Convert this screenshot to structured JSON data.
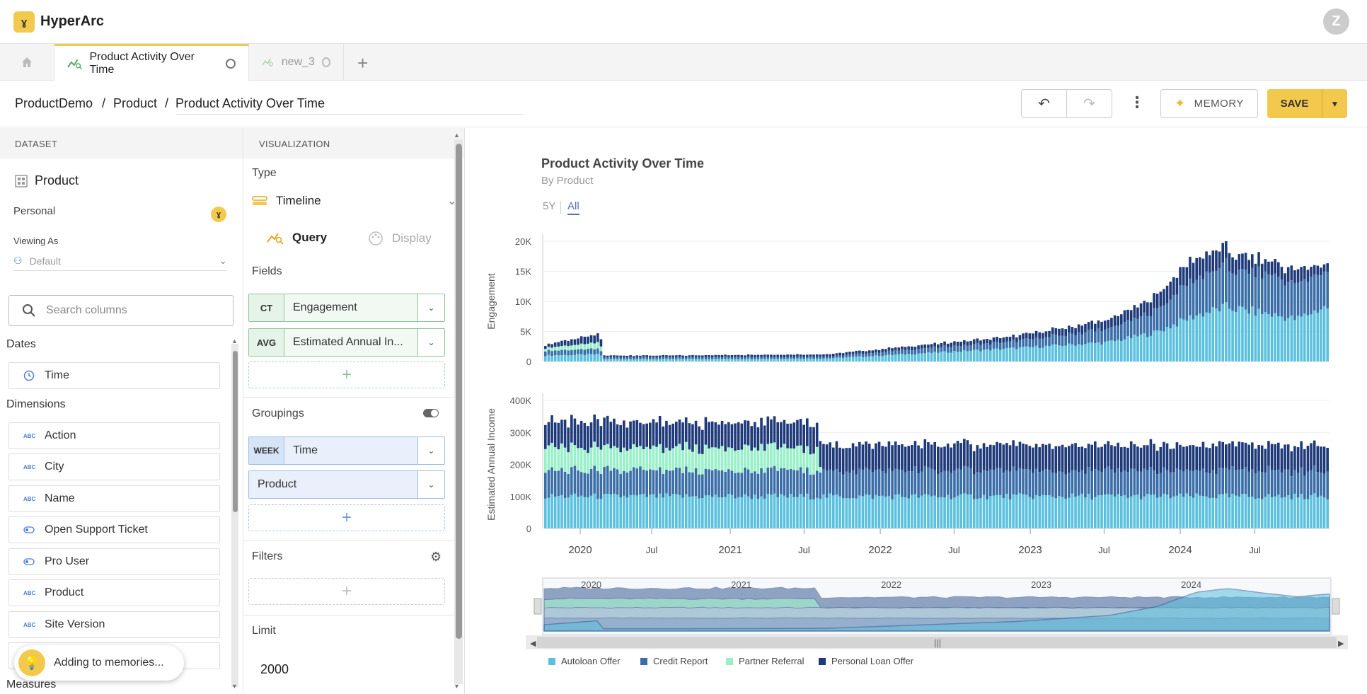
{
  "app": {
    "name": "HyperArc",
    "logo_glyph": "ɣ",
    "avatar_initial": "Z"
  },
  "tabs": [
    {
      "label": "Product Activity Over Time",
      "active": true
    },
    {
      "label": "new_3",
      "active": false
    }
  ],
  "breadcrumb": {
    "root": "ProductDemo",
    "sep": "/",
    "parent": "Product",
    "title": "Product Activity Over Time"
  },
  "toolbar": {
    "memory_label": "MEMORY",
    "save_label": "SAVE"
  },
  "dataset": {
    "header": "DATASET",
    "name": "Product",
    "owner": "Personal",
    "viewing_as_label": "Viewing As",
    "viewing_as_value": "Default",
    "search_placeholder": "Search columns",
    "dates_label": "Dates",
    "dates": [
      "Time"
    ],
    "dimensions_label": "Dimensions",
    "dimensions": [
      {
        "label": "Action",
        "icon": "abc-icon"
      },
      {
        "label": "City",
        "icon": "abc-icon"
      },
      {
        "label": "Name",
        "icon": "abc-icon"
      },
      {
        "label": "Open Support Ticket",
        "icon": "toggle-icon"
      },
      {
        "label": "Pro User",
        "icon": "toggle-icon"
      },
      {
        "label": "Product",
        "icon": "abc-icon"
      },
      {
        "label": "Site Version",
        "icon": "abc-icon"
      }
    ],
    "measures_label": "Measures",
    "toast": "Adding to memories..."
  },
  "visualization": {
    "header": "VISUALIZATION",
    "type_label": "Type",
    "type_value": "Timeline",
    "query_tab": "Query",
    "display_tab": "Display",
    "fields_label": "Fields",
    "fields": [
      {
        "agg": "CT",
        "name": "Engagement"
      },
      {
        "agg": "AVG",
        "name": "Estimated Annual In..."
      }
    ],
    "groupings_label": "Groupings",
    "groupings": [
      {
        "agg": "WEEK",
        "name": "Time"
      },
      {
        "agg": "",
        "name": "Product"
      }
    ],
    "filters_label": "Filters",
    "limit_label": "Limit",
    "limit_value": "2000"
  },
  "chart": {
    "title": "Product Activity Over Time",
    "subtitle": "By Product",
    "range_options": [
      "5Y",
      "All"
    ],
    "selected_range": "All"
  },
  "chart_data": {
    "type": "bar",
    "stacked": true,
    "x_ticks": [
      "2020",
      "Jul",
      "2021",
      "Jul",
      "2022",
      "Jul",
      "2023",
      "Jul",
      "2024",
      "Jul"
    ],
    "navigator_ticks": [
      "2020",
      "2021",
      "2022",
      "2023",
      "2024"
    ],
    "series": [
      {
        "name": "Autoloan Offer",
        "color": "#5bc0de"
      },
      {
        "name": "Credit Report",
        "color": "#3a6ea8"
      },
      {
        "name": "Partner Referral",
        "color": "#98f0c8"
      },
      {
        "name": "Personal Loan Offer",
        "color": "#1f3a7a"
      }
    ],
    "panels": [
      {
        "ylabel": "Engagement",
        "yticks": [
          "0",
          "5K",
          "10K",
          "15K",
          "20K"
        ],
        "ylim": [
          0,
          20000
        ],
        "anchors": [
          [
            0,
            [
              1000,
              800,
              500,
              500
            ]
          ],
          [
            0.07,
            [
              1200,
              900,
              1000,
              1500
            ]
          ],
          [
            0.075,
            [
              400,
              300,
              0,
              300
            ]
          ],
          [
            0.15,
            [
              400,
              300,
              0,
              300
            ]
          ],
          [
            0.36,
            [
              500,
              300,
              0,
              400
            ]
          ],
          [
            0.6,
            [
              2200,
              1200,
              0,
              800
            ]
          ],
          [
            0.72,
            [
              3200,
              2200,
              0,
              1500
            ]
          ],
          [
            0.78,
            [
              4800,
              3600,
              0,
              2400
            ]
          ],
          [
            0.83,
            [
              7600,
              6000,
              0,
              3500
            ]
          ],
          [
            0.87,
            [
              9000,
              6800,
              0,
              3000
            ]
          ],
          [
            0.92,
            [
              8000,
              6400,
              0,
              2200
            ]
          ],
          [
            0.96,
            [
              7000,
              5800,
              0,
              2300
            ]
          ],
          [
            0.995,
            [
              9000,
              6000,
              0,
              1300
            ]
          ]
        ]
      },
      {
        "ylabel": "Estimated Annual Income",
        "yticks": [
          "0",
          "100K",
          "200K",
          "300K",
          "400K"
        ],
        "ylim": [
          0,
          400000
        ],
        "anchors": [
          [
            0,
            [
              100000,
              80000,
              70000,
              80000
            ]
          ],
          [
            0.35,
            [
              100000,
              80000,
              70000,
              80000
            ]
          ],
          [
            0.352,
            [
              100000,
              80000,
              0,
              80000
            ]
          ],
          [
            1,
            [
              100000,
              80000,
              0,
              80000
            ]
          ]
        ]
      }
    ]
  }
}
